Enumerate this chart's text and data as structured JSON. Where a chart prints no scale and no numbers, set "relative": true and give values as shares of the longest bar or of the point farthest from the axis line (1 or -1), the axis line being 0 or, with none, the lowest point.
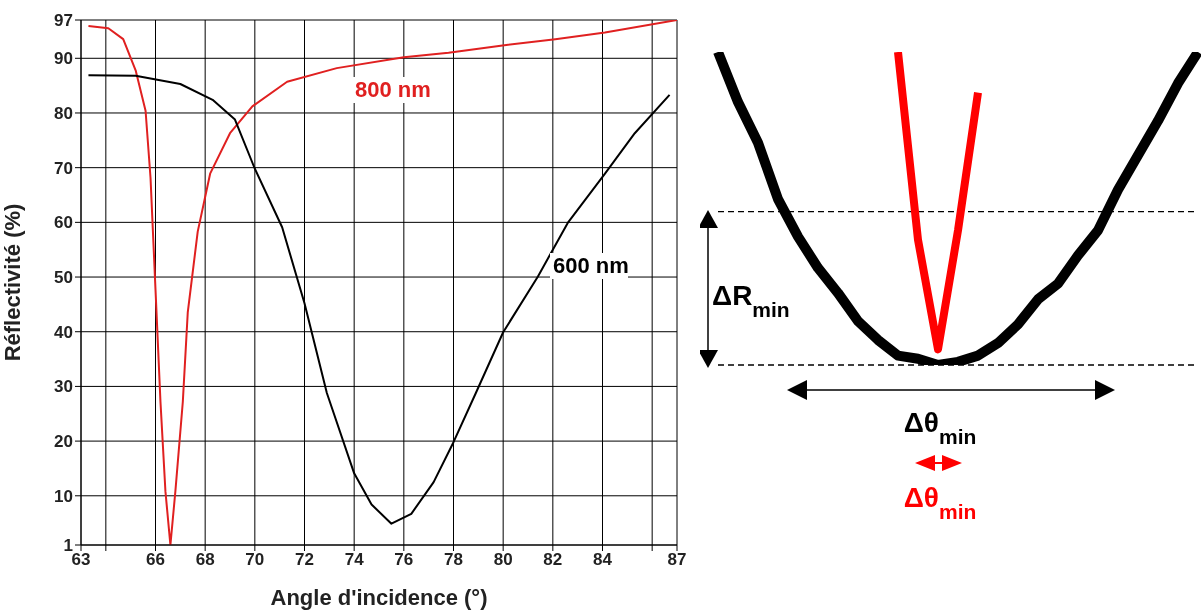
{
  "chart_data": [
    {
      "type": "line",
      "xlabel": "Angle d'incidence (°)",
      "ylabel": "Réflectivité (%)",
      "xlim": [
        63,
        87
      ],
      "xticks": [
        63,
        {
          "value": 64,
          "label": null
        },
        66,
        68,
        70,
        72,
        74,
        76,
        78,
        80,
        82,
        84,
        {
          "value": 86,
          "label": null
        },
        87
      ],
      "ylim": [
        1,
        97
      ],
      "yticks": [
        1,
        10,
        20,
        30,
        40,
        50,
        60,
        70,
        80,
        90,
        97
      ],
      "grid": true,
      "legend": false,
      "series": [
        {
          "name": "800 nm",
          "color": "#e02020",
          "x": [
            63.3,
            64.1,
            64.7,
            65.2,
            65.6,
            65.8,
            66.0,
            66.2,
            66.4,
            66.6,
            66.8,
            67.1,
            67.3,
            67.7,
            68.2,
            69.0,
            69.9,
            71.3,
            73.3,
            76.0,
            77.8,
            79.9,
            82.1,
            84.1,
            87.0
          ],
          "values": [
            95.9,
            95.5,
            93.5,
            87.8,
            80.4,
            68.1,
            47.7,
            27.2,
            10.8,
            1,
            10.8,
            27.2,
            43.6,
            58.3,
            68.9,
            76.3,
            81.2,
            85.7,
            88.2,
            90.2,
            91.0,
            92.3,
            93.5,
            94.7,
            97
          ]
        },
        {
          "name": "600 nm",
          "color": "#000000",
          "x": [
            63.3,
            65.2,
            67.0,
            68.3,
            69.2,
            70.0,
            71.1,
            72.0,
            72.9,
            74.0,
            74.7,
            75.5,
            76.3,
            77.2,
            78.0,
            78.9,
            80.0,
            81.4,
            82.6,
            84.1,
            85.3,
            86.7
          ],
          "values": [
            86.9,
            86.8,
            85.3,
            82.4,
            78.8,
            69.8,
            59.1,
            45.2,
            28.8,
            14.1,
            8.4,
            4.9,
            6.7,
            12.5,
            19.8,
            28.8,
            39.9,
            50.1,
            59.9,
            68.9,
            76.3,
            83.3
          ]
        }
      ]
    },
    {
      "type": "line",
      "relative": true,
      "categories": [
        null,
        null,
        null,
        null,
        null,
        null,
        null,
        null,
        null,
        null,
        null,
        null,
        null,
        null,
        null,
        null,
        null,
        null,
        null,
        null,
        null,
        null,
        null,
        null,
        null
      ],
      "series": [
        {
          "color": "#000000",
          "values": [
            1,
            0.84,
            0.71,
            0.53,
            0.41,
            0.31,
            0.23,
            0.14,
            0.08,
            0.03,
            0.02,
            0,
            0.01,
            0.03,
            0.07,
            0.13,
            0.21,
            0.26,
            0.35,
            0.43,
            0.56,
            0.67,
            0.78,
            0.9,
            1
          ]
        },
        {
          "color": "#ff0000",
          "values": [
            null,
            null,
            null,
            null,
            null,
            null,
            null,
            null,
            null,
            1,
            0.4,
            0.05,
            0.43,
            0.87,
            null,
            null,
            null,
            null,
            null,
            null,
            null,
            null,
            null,
            null,
            null
          ]
        }
      ],
      "ref_lines": [
        {
          "axis": "y",
          "value": 0.49,
          "color": "#000000",
          "line_style": "dashed"
        },
        {
          "axis": "y",
          "value": 0,
          "color": "#000000",
          "line_style": "dashed"
        }
      ],
      "annotations": [
        "ΔR$_{min}$",
        "Δθ$_{min}$",
        "Δθ$_{min}$"
      ]
    }
  ]
}
